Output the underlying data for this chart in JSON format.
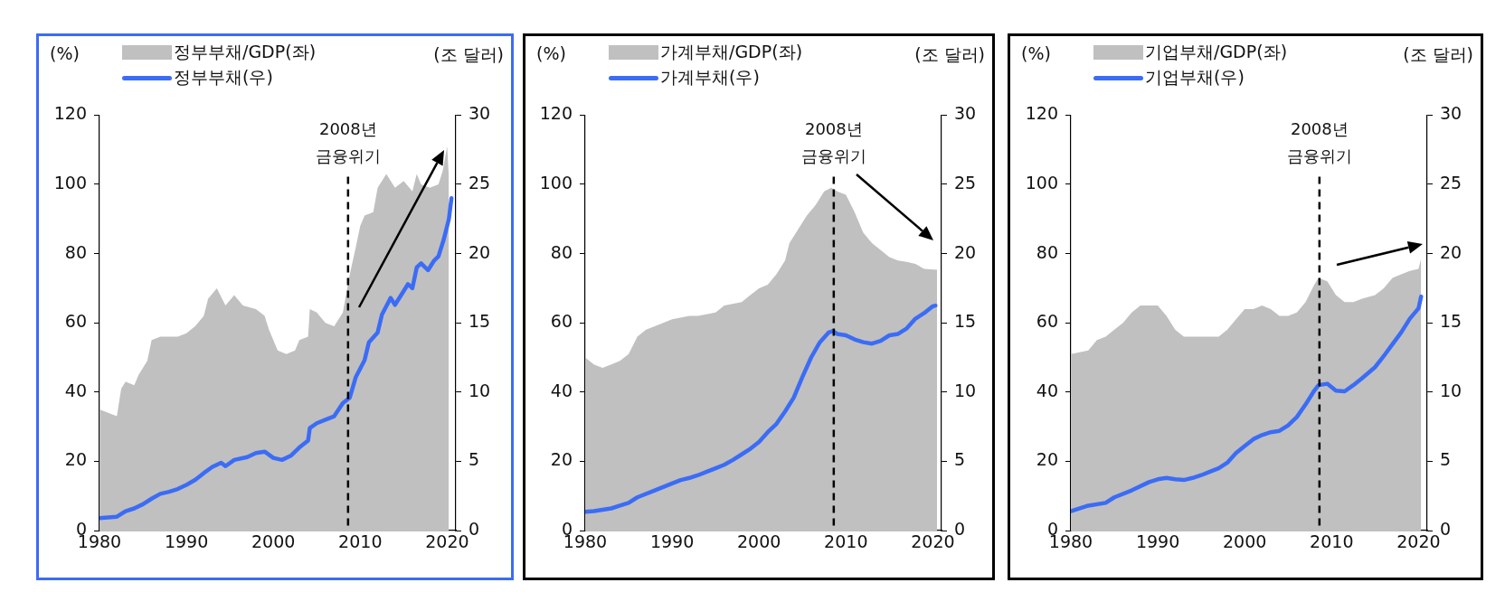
{
  "chart_data": [
    {
      "type": "area",
      "ylabel": "(%)",
      "y2label": "(조 달러)",
      "legend": "top",
      "xlim": [
        1980,
        2021
      ],
      "xticks": [
        1980,
        1990,
        2000,
        2010,
        2020
      ],
      "ylim": [
        0,
        120
      ],
      "yticks": [
        0,
        20,
        40,
        60,
        80,
        100,
        120
      ],
      "y2lim": [
        0,
        30
      ],
      "y2ticks": [
        0,
        5,
        10,
        15,
        20,
        25,
        30
      ],
      "ref_lines": [
        {
          "axis": "x",
          "value": 2008.6,
          "label": "2008년 금융위기",
          "line_style": "dashed",
          "color": "#000000"
        }
      ],
      "series": [
        {
          "name": "정부부채/GDP(좌)",
          "type": "area",
          "color": "#c0c0c0",
          "x": [
            1980,
            1982,
            1982.5,
            1983,
            1984,
            1984.5,
            1985.5,
            1986,
            1987,
            1988,
            1989,
            1990,
            1991,
            1992,
            1992.5,
            1993.5,
            1994.5,
            1995.5,
            1996.5,
            1998,
            1999,
            1999.5,
            2000.5,
            2001.5,
            2002.5,
            2003,
            2004,
            2004.2,
            2005,
            2006,
            2007,
            2008,
            2008.8,
            2009.5,
            2010,
            2010.5,
            2011.5,
            2012,
            2013,
            2014,
            2015,
            2016,
            2016.5,
            2017,
            2018,
            2019,
            2019.5,
            2020,
            2020.2
          ],
          "values": [
            35,
            33,
            41,
            43,
            42,
            45,
            49,
            55,
            56,
            56,
            56,
            57,
            59,
            62,
            67,
            70,
            65,
            68,
            65,
            64,
            62,
            58,
            52,
            51,
            52,
            55,
            56,
            64,
            63,
            60,
            59,
            63,
            74,
            82,
            88,
            91,
            92,
            99,
            103,
            99,
            101,
            98,
            103,
            100,
            99,
            100,
            104,
            111,
            102
          ]
        },
        {
          "name": "정부부채(우)",
          "type": "line",
          "axis": "y2",
          "color": "#3b6cf5",
          "x": [
            1980,
            1982,
            1983,
            1984,
            1985,
            1986,
            1987,
            1988,
            1989,
            1990,
            1991,
            1992,
            1993,
            1994,
            1994.5,
            1995.5,
            1997,
            1998,
            1999,
            2000,
            2001,
            2002,
            2003,
            2004,
            2004.2,
            2005,
            2006,
            2007,
            2008,
            2008.8,
            2009.5,
            2010.5,
            2011,
            2012,
            2012.5,
            2013.5,
            2014,
            2015,
            2015.5,
            2016,
            2016.5,
            2017,
            2017.8,
            2018.5,
            2019,
            2019.6,
            2020,
            2020.2,
            2020.5
          ],
          "values": [
            0.9,
            1.0,
            1.4,
            1.6,
            1.9,
            2.3,
            2.65,
            2.8,
            3.0,
            3.3,
            3.65,
            4.15,
            4.6,
            4.9,
            4.65,
            5.1,
            5.3,
            5.6,
            5.7,
            5.25,
            5.1,
            5.4,
            6.0,
            6.5,
            7.4,
            7.75,
            8.0,
            8.25,
            9.2,
            9.6,
            11.1,
            12.3,
            13.6,
            14.3,
            15.6,
            16.8,
            16.3,
            17.3,
            17.8,
            17.5,
            19.0,
            19.3,
            18.8,
            19.5,
            19.8,
            21.0,
            22.0,
            22.5,
            24.0
          ]
        }
      ]
    },
    {
      "type": "area",
      "ylabel": "(%)",
      "y2label": "(조 달러)",
      "legend": "top",
      "xlim": [
        1980,
        2021
      ],
      "xticks": [
        1980,
        1990,
        2000,
        2010,
        2020
      ],
      "ylim": [
        0,
        120
      ],
      "yticks": [
        0,
        20,
        40,
        60,
        80,
        100,
        120
      ],
      "y2lim": [
        0,
        30
      ],
      "y2ticks": [
        0,
        5,
        10,
        15,
        20,
        25,
        30
      ],
      "ref_lines": [
        {
          "axis": "x",
          "value": 2008.6,
          "label": "2008년 금융위기",
          "line_style": "dashed",
          "color": "#000000"
        }
      ],
      "series": [
        {
          "name": "가계부채/GDP(좌)",
          "type": "area",
          "color": "#c0c0c0",
          "x": [
            1980,
            1981,
            1982,
            1983,
            1984,
            1985,
            1986,
            1987,
            1988,
            1990,
            1992,
            1993,
            1995,
            1996,
            1998,
            1999,
            2000,
            2001,
            2002,
            2003,
            2003.5,
            2004.5,
            2005.5,
            2006.5,
            2007.5,
            2008.3,
            2009,
            2010,
            2011,
            2012,
            2013,
            2014,
            2015,
            2016,
            2017,
            2018,
            2019,
            2020.5
          ],
          "values": [
            50,
            48,
            47,
            48,
            49,
            51,
            56,
            58,
            59,
            61,
            62,
            62,
            63,
            65,
            66,
            68,
            70,
            71,
            74,
            78,
            83,
            87,
            91,
            94,
            98,
            99,
            98,
            97,
            92,
            86,
            83,
            81,
            79,
            78,
            77.6,
            77,
            75.6,
            75.3
          ]
        },
        {
          "name": "가계부채(우)",
          "type": "line",
          "axis": "y2",
          "color": "#3b6cf5",
          "x": [
            1980,
            1981,
            1983,
            1984,
            1985,
            1986,
            1988,
            1990,
            1991,
            1992,
            1993,
            1994,
            1995,
            1996,
            1997,
            1998,
            1999,
            2000,
            2001,
            2002,
            2003,
            2004,
            2005,
            2006,
            2007,
            2008,
            2008.5,
            2009,
            2010,
            2011,
            2012,
            2013,
            2014,
            2015,
            2016,
            2017,
            2018,
            2019,
            2020,
            2020.3
          ],
          "values": [
            1.35,
            1.4,
            1.6,
            1.8,
            2.0,
            2.4,
            2.9,
            3.4,
            3.65,
            3.8,
            4.0,
            4.25,
            4.5,
            4.75,
            5.1,
            5.5,
            5.9,
            6.4,
            7.1,
            7.7,
            8.6,
            9.6,
            11.1,
            12.5,
            13.6,
            14.3,
            14.4,
            14.2,
            14.1,
            13.8,
            13.6,
            13.5,
            13.7,
            14.1,
            14.2,
            14.6,
            15.3,
            15.7,
            16.2,
            16.25
          ]
        }
      ]
    },
    {
      "type": "area",
      "ylabel": "(%)",
      "y2label": "(조 달러)",
      "legend": "top",
      "xlim": [
        1980,
        2021
      ],
      "xticks": [
        1980,
        1990,
        2000,
        2010,
        2020
      ],
      "ylim": [
        0,
        120
      ],
      "yticks": [
        0,
        20,
        40,
        60,
        80,
        100,
        120
      ],
      "y2lim": [
        0,
        30
      ],
      "y2ticks": [
        0,
        5,
        10,
        15,
        20,
        25,
        30
      ],
      "ref_lines": [
        {
          "axis": "x",
          "value": 2008.6,
          "label": "2008년 금융위기",
          "line_style": "dashed",
          "color": "#000000"
        }
      ],
      "series": [
        {
          "name": "기업부채/GDP(좌)",
          "type": "area",
          "color": "#c0c0c0",
          "x": [
            1980,
            1982,
            1983,
            1984,
            1985,
            1986,
            1987,
            1988,
            1989,
            1990,
            1991,
            1992,
            1993,
            1995,
            1996,
            1997,
            1998,
            1999,
            2000,
            2001,
            2002,
            2003,
            2004,
            2005,
            2006,
            2007,
            2008,
            2008.5,
            2009.5,
            2010.5,
            2011.5,
            2012.5,
            2013.5,
            2015,
            2016,
            2017,
            2018,
            2019,
            2020,
            2020.3
          ],
          "values": [
            51,
            52,
            55,
            56,
            58,
            60,
            63,
            65,
            65,
            65,
            62,
            58,
            56,
            56,
            56,
            56,
            58,
            61,
            64,
            64,
            65,
            64,
            62,
            62,
            63,
            66,
            71,
            73,
            72,
            68,
            66,
            66,
            67,
            68,
            70,
            73,
            74,
            75,
            75.6,
            78.6
          ]
        },
        {
          "name": "기업부채(우)",
          "type": "line",
          "axis": "y2",
          "color": "#3b6cf5",
          "x": [
            1980,
            1982,
            1984,
            1985,
            1987,
            1989,
            1990,
            1991,
            1992,
            1993,
            1994,
            1995,
            1996,
            1997,
            1998,
            1999,
            2000,
            2001,
            2002,
            2003,
            2004,
            2005,
            2006,
            2007,
            2008,
            2008.5,
            2009.5,
            2010.5,
            2011.5,
            2012.5,
            2013.5,
            2015,
            2016,
            2017,
            2018,
            2019,
            2020,
            2020.3
          ],
          "values": [
            1.4,
            1.8,
            2.0,
            2.4,
            2.9,
            3.5,
            3.7,
            3.8,
            3.7,
            3.65,
            3.8,
            4.0,
            4.25,
            4.5,
            4.9,
            5.6,
            6.1,
            6.6,
            6.9,
            7.1,
            7.2,
            7.6,
            8.2,
            9.1,
            10.1,
            10.5,
            10.6,
            10.1,
            10.05,
            10.5,
            11.0,
            11.8,
            12.6,
            13.45,
            14.3,
            15.3,
            16.05,
            16.9
          ]
        }
      ]
    }
  ]
}
